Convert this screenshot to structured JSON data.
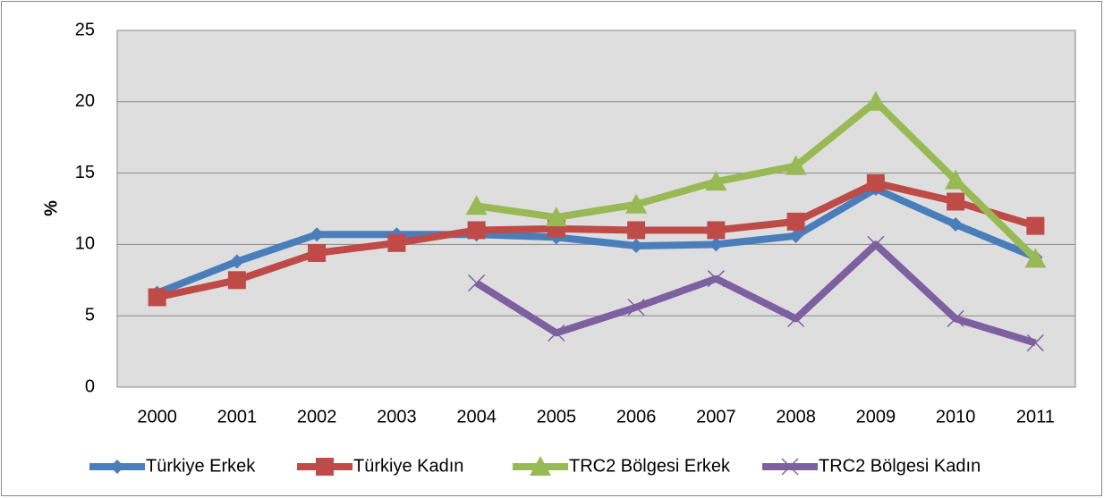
{
  "chart_data": {
    "type": "line",
    "y_label": "%",
    "categories": [
      "2000",
      "2001",
      "2002",
      "2003",
      "2004",
      "2005",
      "2006",
      "2007",
      "2008",
      "2009",
      "2010",
      "2011"
    ],
    "series": [
      {
        "name": "Türkiye Erkek",
        "color": "#4a7ebb",
        "marker": "diamond",
        "values": [
          6.6,
          8.8,
          10.7,
          10.7,
          10.7,
          10.5,
          9.9,
          10.0,
          10.6,
          13.9,
          11.4,
          9.1
        ]
      },
      {
        "name": "Türkiye Kadın",
        "color": "#be4b48",
        "marker": "square",
        "values": [
          6.3,
          7.5,
          9.4,
          10.1,
          11.0,
          11.1,
          11.0,
          11.0,
          11.6,
          14.3,
          13.0,
          11.3
        ]
      },
      {
        "name": "TRC2 Bölgesi Erkek",
        "color": "#98b954",
        "marker": "triangle",
        "values": [
          null,
          null,
          null,
          null,
          12.7,
          11.9,
          12.8,
          14.4,
          15.5,
          20.0,
          14.5,
          9.0
        ]
      },
      {
        "name": "TRC2 Bölgesi Kadın",
        "color": "#7d60a0",
        "marker": "x",
        "values": [
          null,
          null,
          null,
          null,
          7.3,
          3.8,
          5.6,
          7.6,
          4.8,
          10.0,
          4.8,
          3.1
        ]
      }
    ],
    "ylim": [
      0,
      25
    ],
    "yticks": [
      0,
      5,
      10,
      15,
      20,
      25
    ],
    "grid": true,
    "legend": "bottom"
  }
}
